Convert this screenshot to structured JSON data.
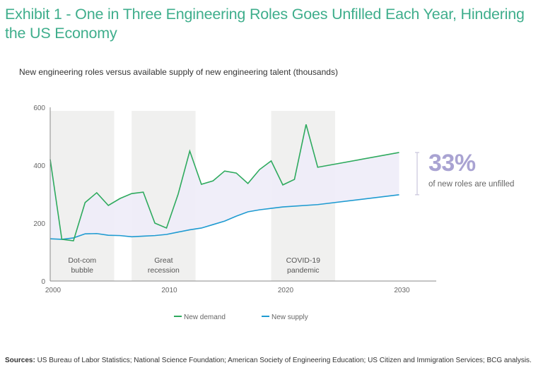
{
  "title": "Exhibit 1 - One in Three Engineering Roles Goes Unfilled Each Year, Hindering the US Economy",
  "subtitle": "New engineering roles versus available supply of new engineering talent (thousands)",
  "callout": {
    "value": "33%",
    "text": "of new roles are unfilled"
  },
  "sources": {
    "label": "Sources:",
    "text": " US Bureau of Labor Statistics; National Science Foundation; American Society of Engineering Education; US Citizen and Immigration Services; BCG analysis."
  },
  "colors": {
    "title": "#3fae8c",
    "demand": "#2eaa5e",
    "supply": "#1f9bd1",
    "gap_fill": "#eeecf8",
    "band": "#f0f0ef",
    "callout": "#a9a3d2"
  },
  "chart_data": {
    "type": "line",
    "title": "New engineering roles versus available supply of new engineering talent (thousands)",
    "xlabel": "",
    "ylabel": "",
    "xlim": [
      2000,
      2033
    ],
    "ylim": [
      0,
      600
    ],
    "x_ticks": [
      2000,
      2010,
      2020,
      2030
    ],
    "y_ticks": [
      0,
      200,
      400,
      600
    ],
    "grid": false,
    "legend": "bottom",
    "series": [
      {
        "name": "New demand",
        "x": [
          2000,
          2001,
          2002,
          2003,
          2004,
          2005,
          2006,
          2007,
          2008,
          2009,
          2010,
          2011,
          2012,
          2013,
          2014,
          2015,
          2016,
          2017,
          2018,
          2019,
          2020,
          2021,
          2022,
          2023,
          2030
        ],
        "values": [
          420,
          144,
          139,
          271,
          305,
          261,
          285,
          302,
          307,
          200,
          183,
          300,
          449,
          334,
          346,
          380,
          373,
          337,
          385,
          415,
          332,
          351,
          541,
          393,
          444
        ]
      },
      {
        "name": "New supply",
        "x": [
          2000,
          2001,
          2002,
          2003,
          2004,
          2005,
          2006,
          2007,
          2008,
          2009,
          2010,
          2011,
          2012,
          2013,
          2014,
          2015,
          2016,
          2017,
          2018,
          2019,
          2020,
          2023,
          2030
        ],
        "values": [
          146,
          144,
          149,
          163,
          164,
          158,
          157,
          153,
          155,
          157,
          161,
          169,
          177,
          183,
          195,
          207,
          224,
          239,
          246,
          251,
          256,
          264,
          298
        ]
      }
    ],
    "shaded_periods": [
      {
        "label": [
          "Dot-com",
          "bubble"
        ],
        "start": 2000,
        "end": 2005.5
      },
      {
        "label": [
          "Great",
          "recession"
        ],
        "start": 2007,
        "end": 2012.5
      },
      {
        "label": [
          "COVID-19",
          "pandemic"
        ],
        "start": 2019,
        "end": 2024.5
      }
    ],
    "annotation": "33% of new roles are unfilled"
  }
}
